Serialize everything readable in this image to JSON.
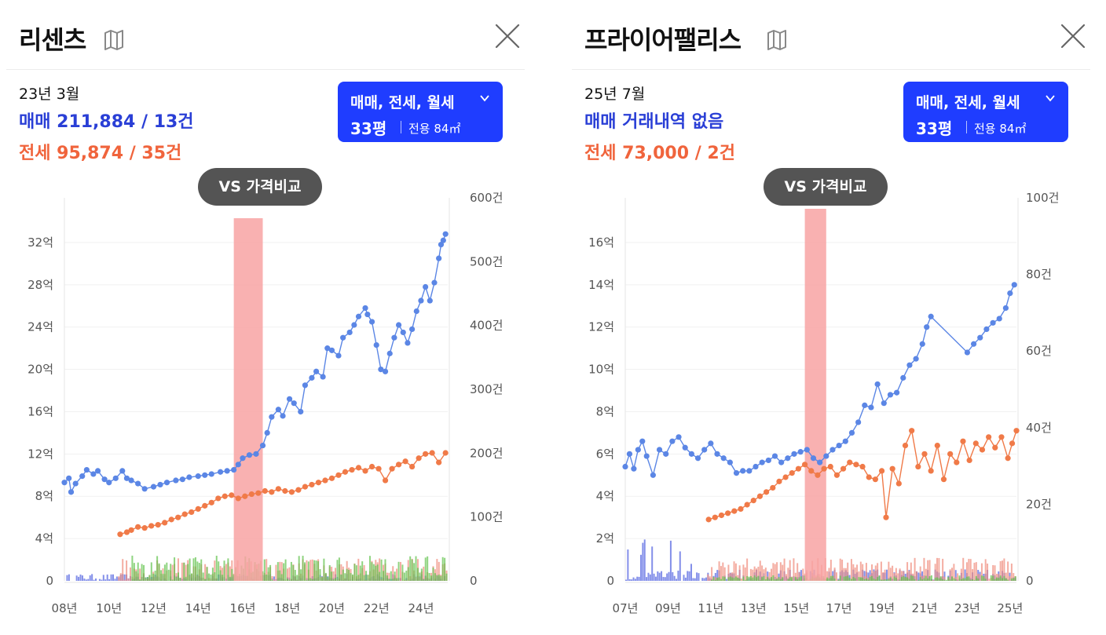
{
  "panels": [
    {
      "title": "리센츠",
      "date": "23년 3월",
      "sale_summary": "매매 211,884 / 13건",
      "jeonse_summary": "전세 95,874 / 35건",
      "filter": {
        "types": "매매, 전세, 월세",
        "pyeong": "33평",
        "area": "전용 84㎡"
      },
      "compare_button": "VS 가격비교"
    },
    {
      "title": "프라이어팰리스",
      "date": "25년 7월",
      "sale_summary": "매매 거래내역 없음",
      "jeonse_summary": "전세 73,000 / 2건",
      "filter": {
        "types": "매매, 전세, 월세",
        "pyeong": "33평",
        "area": "전용 84㎡"
      },
      "compare_button": "VS 가격비교"
    }
  ],
  "colors": {
    "sale": "#5b86e5",
    "jeonse": "#f07a48",
    "vol_sale": "#4f5fe0",
    "vol_jeonse": "#f08a7a",
    "vol_monthly": "#5fc24a",
    "highlight": "#f8a3a3",
    "accent": "#1f3dff"
  },
  "chart_data": [
    {
      "type": "line",
      "x_unit": "year",
      "xlim": [
        2008,
        2025.2
      ],
      "x_tick_values": [
        2008,
        2010,
        2012,
        2014,
        2016,
        2018,
        2020,
        2022,
        2024
      ],
      "x_tick_labels": [
        "08년",
        "10년",
        "12년",
        "14년",
        "16년",
        "18년",
        "20년",
        "22년",
        "24년"
      ],
      "ylim": [
        0,
        34
      ],
      "y_tick_values": [
        0,
        4,
        8,
        12,
        16,
        20,
        24,
        28,
        32
      ],
      "y_tick_labels": [
        "0",
        "4억",
        "8억",
        "12억",
        "16억",
        "20억",
        "24억",
        "28억",
        "32억"
      ],
      "y2lim": [
        0,
        600
      ],
      "y2_tick_values": [
        0,
        100,
        200,
        300,
        400,
        500,
        600
      ],
      "y2_tick_labels": [
        "0",
        "100건",
        "200건",
        "300건",
        "400건",
        "500건",
        "600건"
      ],
      "highlight_range": [
        2015.6,
        2016.9
      ],
      "series": [
        {
          "key": "sale",
          "x": [
            2008.0,
            2008.2,
            2008.3,
            2008.5,
            2008.8,
            2009.0,
            2009.3,
            2009.5,
            2009.8,
            2010.0,
            2010.3,
            2010.6,
            2010.8,
            2011.0,
            2011.3,
            2011.6,
            2012.0,
            2012.3,
            2012.6,
            2013.0,
            2013.3,
            2013.6,
            2014.0,
            2014.3,
            2014.6,
            2015.0,
            2015.3,
            2015.6,
            2015.8,
            2016.0,
            2016.3,
            2016.6,
            2016.9,
            2017.1,
            2017.3,
            2017.6,
            2017.8,
            2018.1,
            2018.3,
            2018.6,
            2018.8,
            2019.1,
            2019.3,
            2019.6,
            2019.8,
            2020.0,
            2020.3,
            2020.5,
            2020.8,
            2021.0,
            2021.2,
            2021.5,
            2021.6,
            2021.8,
            2022.0,
            2022.2,
            2022.4,
            2022.6,
            2022.8,
            2023.0,
            2023.2,
            2023.4,
            2023.6,
            2023.8,
            2024.0,
            2024.2,
            2024.4,
            2024.6,
            2024.8,
            2024.9,
            2025.0,
            2025.1
          ],
          "y": [
            9.3,
            9.7,
            8.4,
            9.2,
            9.9,
            10.5,
            10.1,
            10.4,
            9.6,
            9.3,
            9.7,
            10.4,
            9.7,
            9.5,
            9.2,
            8.7,
            8.9,
            9.1,
            9.3,
            9.5,
            9.6,
            9.8,
            9.9,
            10.0,
            10.1,
            10.3,
            10.4,
            10.5,
            11.0,
            11.6,
            11.9,
            12.0,
            12.8,
            14.0,
            15.5,
            16.2,
            15.6,
            17.2,
            16.8,
            16.0,
            18.5,
            19.2,
            19.8,
            19.3,
            22.0,
            21.8,
            21.3,
            23.0,
            23.5,
            24.2,
            25.0,
            25.8,
            25.2,
            24.5,
            22.3,
            20.0,
            19.8,
            21.5,
            23.0,
            24.2,
            23.5,
            22.5,
            23.8,
            25.5,
            26.5,
            27.8,
            26.5,
            28.2,
            30.5,
            31.8,
            32.2,
            32.8
          ]
        },
        {
          "key": "jeonse",
          "x": [
            2010.5,
            2010.8,
            2011.0,
            2011.3,
            2011.6,
            2011.9,
            2012.2,
            2012.5,
            2012.8,
            2013.1,
            2013.4,
            2013.7,
            2014.0,
            2014.3,
            2014.6,
            2014.9,
            2015.2,
            2015.5,
            2015.8,
            2016.1,
            2016.4,
            2016.7,
            2017.0,
            2017.3,
            2017.6,
            2017.9,
            2018.2,
            2018.5,
            2018.8,
            2019.1,
            2019.4,
            2019.7,
            2020.0,
            2020.3,
            2020.6,
            2020.9,
            2021.2,
            2021.5,
            2021.8,
            2022.1,
            2022.4,
            2022.7,
            2023.0,
            2023.3,
            2023.6,
            2023.9,
            2024.2,
            2024.5,
            2024.8,
            2025.1
          ],
          "y": [
            4.4,
            4.6,
            4.8,
            5.1,
            5.0,
            5.2,
            5.3,
            5.5,
            5.8,
            6.0,
            6.3,
            6.5,
            6.8,
            7.1,
            7.4,
            7.8,
            8.0,
            8.1,
            7.8,
            8.0,
            8.2,
            8.3,
            8.5,
            8.4,
            8.7,
            8.5,
            8.4,
            8.6,
            8.9,
            9.1,
            9.3,
            9.5,
            9.7,
            10.0,
            10.3,
            10.5,
            10.7,
            10.4,
            10.8,
            10.6,
            9.5,
            10.6,
            11.0,
            11.3,
            10.8,
            11.6,
            12.0,
            12.1,
            11.2,
            12.1
          ]
        }
      ]
    },
    {
      "type": "line",
      "x_unit": "year",
      "xlim": [
        2007,
        2025.3
      ],
      "x_tick_values": [
        2007,
        2009,
        2011,
        2013,
        2015,
        2017,
        2019,
        2021,
        2023,
        2025
      ],
      "x_tick_labels": [
        "07년",
        "09년",
        "11년",
        "13년",
        "15년",
        "17년",
        "19년",
        "21년",
        "23년",
        "25년"
      ],
      "ylim": [
        0,
        17
      ],
      "y_tick_values": [
        0,
        2,
        4,
        6,
        8,
        10,
        12,
        14,
        16
      ],
      "y_tick_labels": [
        "0",
        "2억",
        "4억",
        "6억",
        "8억",
        "10억",
        "12억",
        "14억",
        "16억"
      ],
      "y2lim": [
        0,
        100
      ],
      "y2_tick_values": [
        0,
        20,
        40,
        60,
        80,
        100
      ],
      "y2_tick_labels": [
        "0",
        "20건",
        "40건",
        "60건",
        "80건",
        "100건"
      ],
      "highlight_range": [
        2015.4,
        2016.4
      ],
      "series": [
        {
          "key": "sale",
          "x": [
            2007.0,
            2007.2,
            2007.4,
            2007.6,
            2007.8,
            2008.0,
            2008.3,
            2008.6,
            2008.9,
            2009.2,
            2009.5,
            2009.8,
            2010.1,
            2010.4,
            2010.7,
            2011.0,
            2011.3,
            2011.6,
            2011.9,
            2012.2,
            2012.5,
            2012.8,
            2013.1,
            2013.4,
            2013.7,
            2014.0,
            2014.3,
            2014.6,
            2014.9,
            2015.2,
            2015.5,
            2015.8,
            2016.1,
            2016.4,
            2016.7,
            2017.0,
            2017.3,
            2017.6,
            2017.9,
            2018.2,
            2018.5,
            2018.8,
            2019.1,
            2019.4,
            2019.7,
            2020.0,
            2020.3,
            2020.6,
            2020.9,
            2021.1,
            2021.3,
            2023.0,
            2023.3,
            2023.6,
            2023.9,
            2024.2,
            2024.5,
            2024.8,
            2025.0,
            2025.2
          ],
          "y": [
            5.4,
            6.0,
            5.3,
            6.2,
            6.6,
            5.9,
            5.0,
            6.2,
            6.0,
            6.6,
            6.8,
            6.3,
            6.0,
            5.8,
            6.2,
            6.5,
            6.0,
            5.8,
            5.6,
            5.1,
            5.2,
            5.2,
            5.4,
            5.6,
            5.7,
            5.9,
            5.6,
            5.8,
            6.0,
            6.1,
            6.2,
            5.8,
            5.6,
            5.9,
            6.2,
            6.4,
            6.6,
            7.0,
            7.5,
            8.3,
            8.2,
            9.3,
            8.4,
            8.8,
            8.9,
            9.6,
            10.2,
            10.5,
            11.2,
            12.0,
            12.5,
            10.8,
            11.2,
            11.5,
            11.9,
            12.2,
            12.4,
            12.9,
            13.6,
            14.0
          ]
        },
        {
          "key": "jeonse",
          "x": [
            2010.9,
            2011.2,
            2011.5,
            2011.8,
            2012.1,
            2012.4,
            2012.7,
            2013.0,
            2013.3,
            2013.6,
            2013.9,
            2014.2,
            2014.5,
            2014.8,
            2015.1,
            2015.4,
            2015.7,
            2016.0,
            2016.3,
            2016.6,
            2016.9,
            2017.2,
            2017.5,
            2017.8,
            2018.1,
            2018.4,
            2018.7,
            2019.0,
            2019.2,
            2019.5,
            2019.8,
            2020.1,
            2020.4,
            2020.7,
            2021.0,
            2021.3,
            2021.6,
            2021.9,
            2022.2,
            2022.5,
            2022.8,
            2023.1,
            2023.4,
            2023.7,
            2024.0,
            2024.3,
            2024.6,
            2024.9,
            2025.1,
            2025.3
          ],
          "y": [
            2.9,
            3.0,
            3.1,
            3.2,
            3.3,
            3.4,
            3.6,
            3.8,
            4.0,
            4.2,
            4.4,
            4.7,
            4.9,
            5.1,
            5.3,
            5.5,
            5.2,
            5.0,
            5.3,
            5.4,
            5.0,
            5.3,
            5.6,
            5.5,
            5.4,
            4.9,
            4.8,
            5.2,
            3.0,
            5.3,
            4.6,
            6.4,
            7.1,
            5.4,
            6.0,
            5.2,
            6.4,
            4.8,
            6.0,
            5.6,
            6.6,
            5.7,
            6.5,
            6.2,
            6.8,
            6.3,
            6.8,
            5.8,
            6.5,
            7.1
          ]
        }
      ]
    }
  ]
}
